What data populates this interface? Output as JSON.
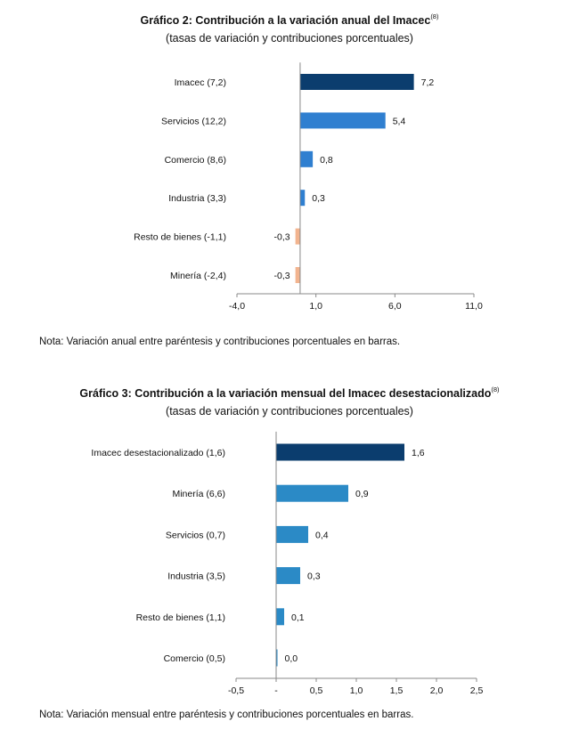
{
  "charts": [
    {
      "title": "Gráfico 2: Contribución a la variación anual del Imacec",
      "title_sup": "(8)",
      "subtitle": "(tasas de variación y contribuciones porcentuales)",
      "note": "Nota: Variación anual entre paréntesis y contribuciones porcentuales en barras."
    },
    {
      "title": "Gráfico 3: Contribución a la variación mensual del Imacec desestacionalizado",
      "title_sup": "(8)",
      "subtitle": "(tasas de variación y contribuciones porcentuales)",
      "note": "Nota: Variación mensual entre paréntesis y contribuciones porcentuales en barras."
    }
  ],
  "chart_data": [
    {
      "type": "bar",
      "orientation": "horizontal",
      "title": "Gráfico 2: Contribución a la variación anual del Imacec",
      "subtitle": "(tasas de variación y contribuciones porcentuales)",
      "categories": [
        "Imacec (7,2)",
        "Servicios (12,2)",
        "Comercio (8,6)",
        "Industria (3,3)",
        "Resto de bienes (-1,1)",
        "Minería (-2,4)"
      ],
      "values": [
        7.2,
        5.4,
        0.8,
        0.3,
        -0.3,
        -0.3
      ],
      "value_labels": [
        "7,2",
        "5,4",
        "0,8",
        "0,3",
        "-0,3",
        "-0,3"
      ],
      "bar_colors": [
        "#0b3d6e",
        "#2f7fd0",
        "#2f7fd0",
        "#2f7fd0",
        "#f2b48f",
        "#f2b48f"
      ],
      "xlim": [
        -4.0,
        11.0
      ],
      "xticks": [
        -4.0,
        1.0,
        6.0,
        11.0
      ],
      "xtick_labels": [
        "-4,0",
        "1,0",
        "6,0",
        "11,0"
      ],
      "grid": false,
      "legend": "none"
    },
    {
      "type": "bar",
      "orientation": "horizontal",
      "title": "Gráfico 3: Contribución a la variación mensual del Imacec desestacionalizado",
      "subtitle": "(tasas de variación y contribuciones porcentuales)",
      "categories": [
        "Imacec desestacionalizado (1,6)",
        "Minería (6,6)",
        "Servicios (0,7)",
        "Industria (3,5)",
        "Resto de bienes (1,1)",
        "Comercio (0,5)"
      ],
      "values": [
        1.6,
        0.9,
        0.4,
        0.3,
        0.1,
        0.0
      ],
      "value_labels": [
        "1,6",
        "0,9",
        "0,4",
        "0,3",
        "0,1",
        "0,0"
      ],
      "bar_colors": [
        "#0b3d6e",
        "#2b8ac6",
        "#2b8ac6",
        "#2b8ac6",
        "#2b8ac6",
        "#2b8ac6"
      ],
      "xlim": [
        -0.5,
        2.5
      ],
      "xticks": [
        -0.5,
        0.0,
        0.5,
        1.0,
        1.5,
        2.0,
        2.5
      ],
      "xtick_labels": [
        "-0,5",
        "-",
        "0,5",
        "1,0",
        "1,5",
        "2,0",
        "2,5"
      ],
      "grid": false,
      "legend": "none"
    }
  ]
}
